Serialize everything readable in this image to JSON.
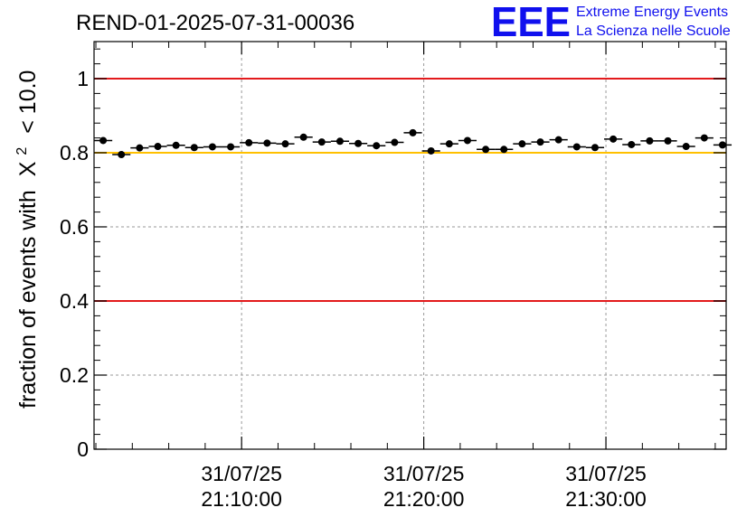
{
  "chart_data": {
    "type": "scatter",
    "title": "REND-01-2025-07-31-00036",
    "ylabel": "fraction of events with",
    "ylabel_symbol": "X",
    "ylabel_sup": "2",
    "ylabel_tail": "< 10.0",
    "ylim": [
      0,
      1.1
    ],
    "grid": true,
    "y_ticks": [
      "0",
      "0.2",
      "0.4",
      "0.6",
      "0.8",
      "1"
    ],
    "y_tick_values": [
      0,
      0.2,
      0.4,
      0.6,
      0.8,
      1.0
    ],
    "x_tick_labels": [
      {
        "date": "31/07/25",
        "time": "21:10:00"
      },
      {
        "date": "31/07/25",
        "time": "21:20:00"
      },
      {
        "date": "31/07/25",
        "time": "21:30:00"
      }
    ],
    "x_tick_minutes": [
      10,
      20,
      30
    ],
    "xlim_minutes": [
      1.9,
      36.6
    ],
    "bin_width_minutes": 1.0,
    "reference_lines": [
      {
        "name": "upper-limit",
        "value": 1.0,
        "color": "#e31a1c"
      },
      {
        "name": "threshold",
        "value": 0.8,
        "color": "#ffc000"
      },
      {
        "name": "lower-limit",
        "value": 0.4,
        "color": "#e31a1c"
      }
    ],
    "x": [
      2.4,
      3.4,
      4.4,
      5.4,
      6.4,
      7.4,
      8.4,
      9.4,
      10.4,
      11.4,
      12.4,
      13.4,
      14.4,
      15.4,
      16.4,
      17.4,
      18.4,
      19.4,
      20.4,
      21.4,
      22.4,
      23.4,
      24.4,
      25.4,
      26.4,
      27.4,
      28.4,
      29.4,
      30.4,
      31.4,
      32.4,
      33.4,
      34.4,
      35.4,
      36.4
    ],
    "y": [
      0.833,
      0.795,
      0.813,
      0.817,
      0.82,
      0.814,
      0.816,
      0.816,
      0.827,
      0.826,
      0.824,
      0.842,
      0.829,
      0.831,
      0.825,
      0.819,
      0.828,
      0.854,
      0.805,
      0.824,
      0.833,
      0.809,
      0.809,
      0.824,
      0.829,
      0.835,
      0.816,
      0.814,
      0.837,
      0.822,
      0.832,
      0.832,
      0.817,
      0.84,
      0.821
    ]
  },
  "branding": {
    "logo_text": "EEE",
    "line1": "Extreme Energy Events",
    "line2": "La Scienza nelle Scuole"
  }
}
